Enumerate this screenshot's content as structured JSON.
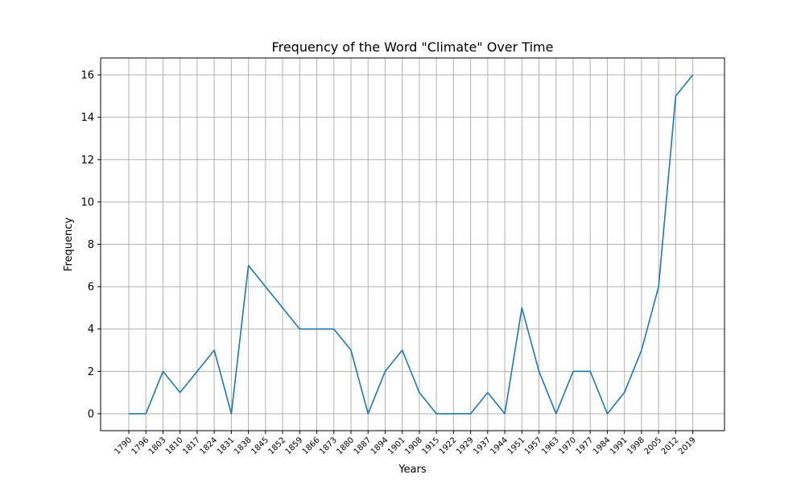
{
  "chart_data": {
    "type": "line",
    "title": "Frequency of the Word \"Climate\" Over Time",
    "xlabel": "Years",
    "ylabel": "Frequency",
    "ylim": [
      -0.8,
      16.8
    ],
    "yticks": [
      0,
      2,
      4,
      6,
      8,
      10,
      12,
      14,
      16
    ],
    "grid": true,
    "legend": "none",
    "color": "#1f77b4",
    "categories": [
      "1790",
      "1796",
      "1803",
      "1810",
      "1817",
      "1824",
      "1831",
      "1838",
      "1845",
      "1852",
      "1859",
      "1866",
      "1873",
      "1880",
      "1887",
      "1894",
      "1901",
      "1908",
      "1915",
      "1922",
      "1929",
      "1937",
      "1944",
      "1951",
      "1957",
      "1963",
      "1970",
      "1977",
      "1984",
      "1991",
      "1998",
      "2005",
      "2012",
      "2019"
    ],
    "values": [
      0,
      0,
      2,
      1,
      2,
      3,
      0,
      7,
      6,
      5,
      4,
      4,
      4,
      3,
      0,
      2,
      3,
      1,
      0,
      0,
      0,
      1,
      0,
      5,
      2,
      0,
      2,
      2,
      0,
      1,
      3,
      6,
      15,
      16
    ]
  }
}
